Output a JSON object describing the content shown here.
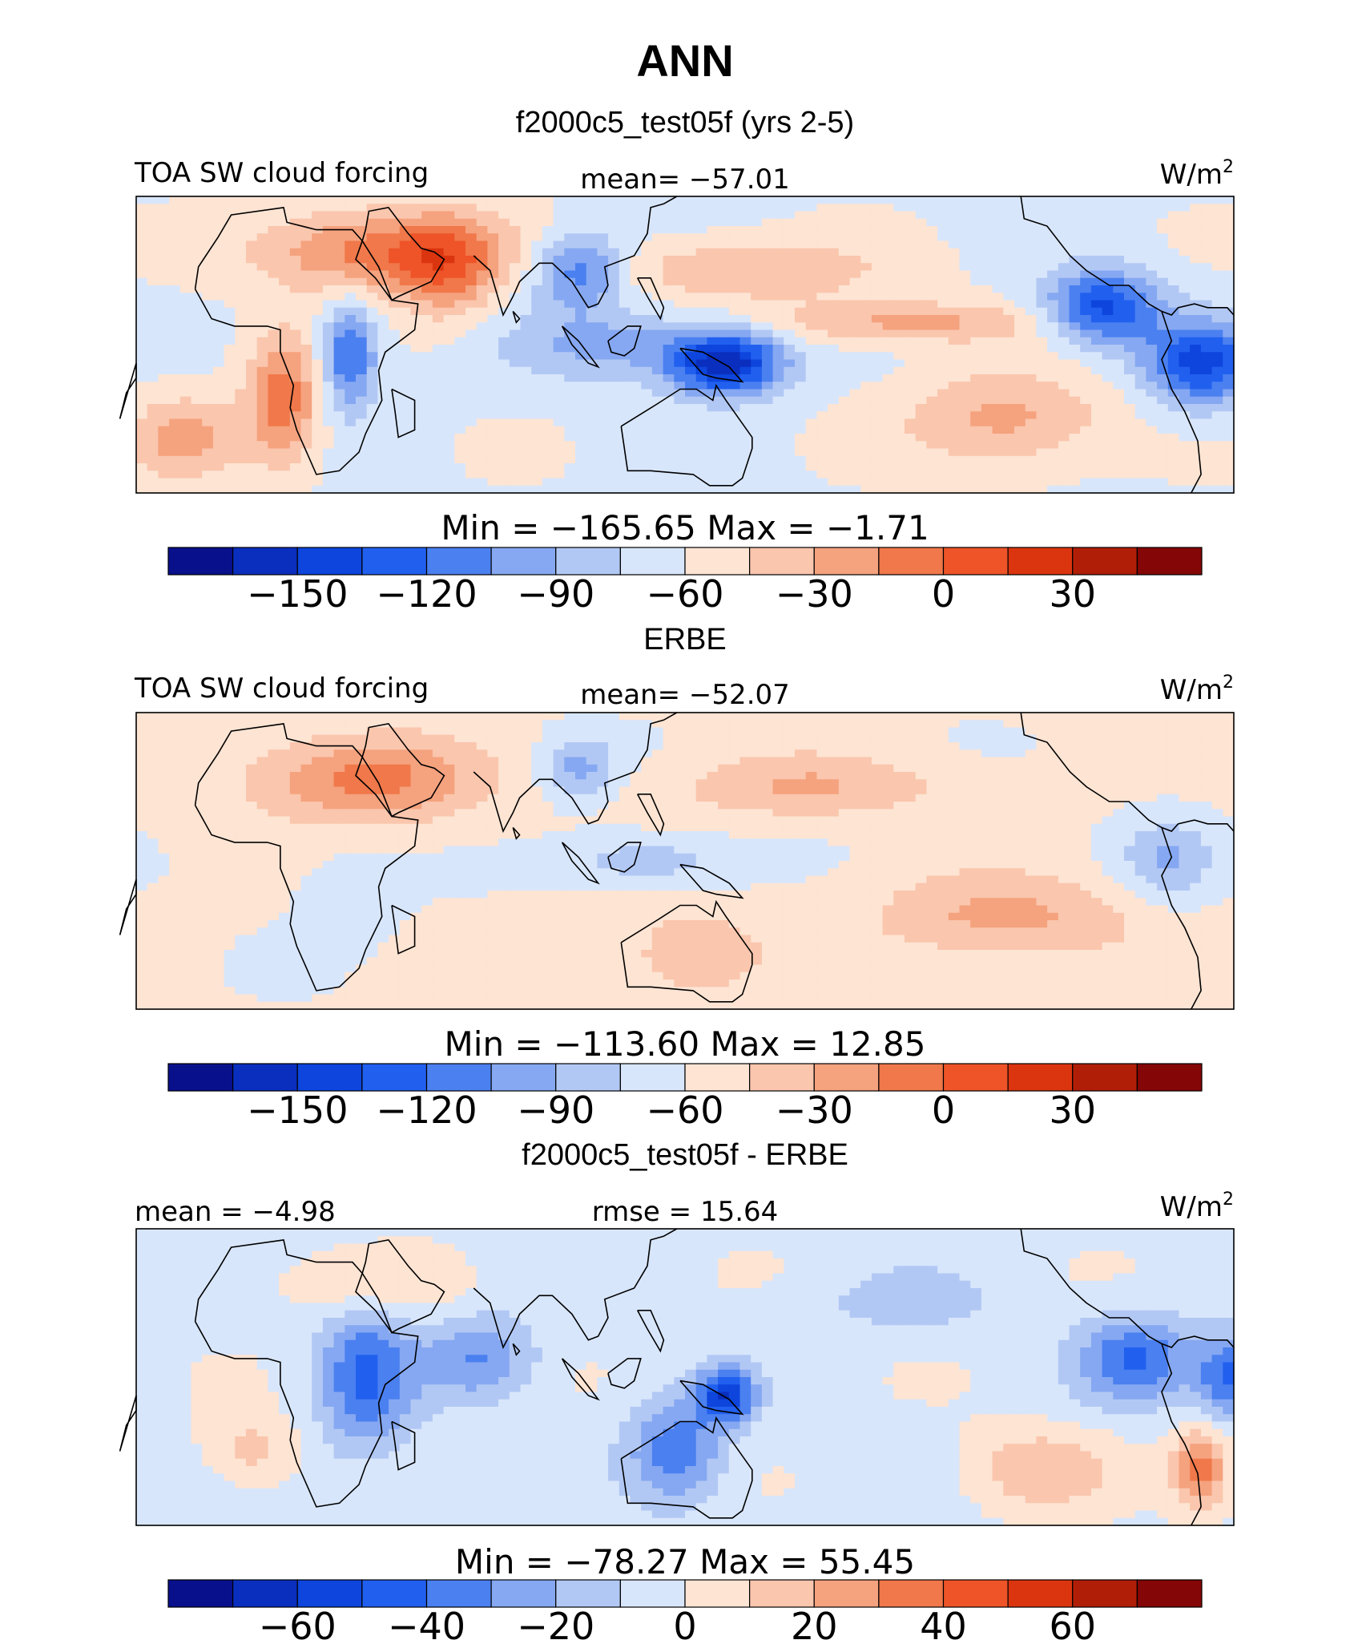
{
  "page": {
    "title": "ANN"
  },
  "palette": [
    "#08108c",
    "#0a2fbf",
    "#0d45dd",
    "#2160ef",
    "#4b80f0",
    "#86a8f2",
    "#b2c8f4",
    "#d8e6fb",
    "#fde4d3",
    "#fac6ad",
    "#f5a27e",
    "#f0784a",
    "#ee5428",
    "#db3510",
    "#b01e08",
    "#850606"
  ],
  "chart_data": [
    {
      "type": "heatmap",
      "panel_title": "f2000c5_test05f (yrs 2-5)",
      "variable": "TOA SW cloud forcing",
      "stat_text": "mean= −57.01",
      "units_label": "W/m",
      "units_sup": "2",
      "minmax_text": "Min  =  −165.65  Max  =   −1.71",
      "mean": -57.01,
      "min": -165.65,
      "max": -1.71,
      "colorbar_levels": [
        -165,
        -150,
        -135,
        -120,
        -105,
        -90,
        -75,
        -60,
        -45,
        -30,
        -15,
        0,
        15,
        30,
        45
      ],
      "colorbar_ticks": [
        -150,
        -120,
        -90,
        -60,
        -30,
        0,
        30
      ],
      "colorbar_tick_labels": [
        "−150",
        "−120",
        "−90",
        "−60",
        "−30",
        "0",
        "30"
      ],
      "features": [
        {
          "lon": 40,
          "lat": 25,
          "sx": 26,
          "sy": 8,
          "v": -4
        },
        {
          "lon": 60,
          "lat": 20,
          "sx": 10,
          "sy": 10,
          "v": -25
        },
        {
          "lon": 10,
          "lat": -15,
          "sx": 8,
          "sy": 12,
          "v": -6
        },
        {
          "lon": 100,
          "lat": 20,
          "sx": 10,
          "sy": 7,
          "v": -120
        },
        {
          "lon": 150,
          "lat": 20,
          "sx": 30,
          "sy": 6,
          "v": -30
        },
        {
          "lon": 230,
          "lat": -20,
          "sx": 22,
          "sy": 9,
          "v": -25
        },
        {
          "lon": 200,
          "lat": 6,
          "sx": 30,
          "sy": 4,
          "v": -25
        },
        {
          "lon": 260,
          "lat": 10,
          "sx": 12,
          "sy": 7,
          "v": -140
        },
        {
          "lon": 290,
          "lat": -5,
          "sx": 12,
          "sy": 8,
          "v": -140
        },
        {
          "lon": 30,
          "lat": -3,
          "sx": 6,
          "sy": 10,
          "v": -125
        },
        {
          "lon": 145,
          "lat": -5,
          "sx": 12,
          "sy": 6,
          "v": -160
        },
        {
          "lon": 110,
          "lat": 0,
          "sx": 22,
          "sy": 7,
          "v": -95
        },
        {
          "lon": -20,
          "lat": -25,
          "sx": 12,
          "sy": 8,
          "v": -25
        }
      ],
      "baseline": -62
    },
    {
      "type": "heatmap",
      "panel_title": "ERBE",
      "variable": "TOA SW cloud forcing",
      "stat_text": "mean= −52.07",
      "units_label": "W/m",
      "units_sup": "2",
      "minmax_text": "Min  =  −113.60  Max  =   12.85",
      "mean": -52.07,
      "min": -113.6,
      "max": 12.85,
      "colorbar_levels": [
        -165,
        -150,
        -135,
        -120,
        -105,
        -90,
        -75,
        -60,
        -45,
        -30,
        -15,
        0,
        15,
        30,
        45
      ],
      "colorbar_ticks": [
        -150,
        -120,
        -90,
        -60,
        -30,
        0,
        30
      ],
      "colorbar_tick_labels": [
        "−150",
        "−120",
        "−90",
        "−60",
        "−30",
        "0",
        "30"
      ],
      "features": [
        {
          "lon": 35,
          "lat": 22,
          "sx": 24,
          "sy": 8,
          "v": -8
        },
        {
          "lon": 170,
          "lat": 20,
          "sx": 30,
          "sy": 6,
          "v": -30
        },
        {
          "lon": 230,
          "lat": -15,
          "sx": 28,
          "sy": 8,
          "v": -25
        },
        {
          "lon": 135,
          "lat": -25,
          "sx": 14,
          "sy": 8,
          "v": -30
        },
        {
          "lon": 100,
          "lat": 25,
          "sx": 8,
          "sy": 6,
          "v": -95
        },
        {
          "lon": 120,
          "lat": 0,
          "sx": 18,
          "sy": 5,
          "v": -85
        },
        {
          "lon": 280,
          "lat": 0,
          "sx": 10,
          "sy": 8,
          "v": -90
        },
        {
          "lon": 30,
          "lat": -10,
          "sx": 10,
          "sy": 8,
          "v": -75
        }
      ],
      "baseline": -58
    },
    {
      "type": "heatmap",
      "panel_title": "f2000c5_test05f - ERBE",
      "stat_text": "mean =   −4.98",
      "stat2_text": "rmse  =   15.64",
      "units_label": "W/m",
      "units_sup": "2",
      "minmax_text": "Min  =  −78.27  Max  =   55.45",
      "mean": -4.98,
      "rmse": 15.64,
      "min": -78.27,
      "max": 55.45,
      "colorbar_levels": [
        -70,
        -60,
        -50,
        -40,
        -30,
        -20,
        -10,
        0,
        10,
        20,
        30,
        40,
        50,
        60,
        70
      ],
      "colorbar_ticks": [
        -60,
        -40,
        -20,
        0,
        20,
        40,
        60
      ],
      "colorbar_tick_labels": [
        "−60",
        "−40",
        "−20",
        "0",
        "20",
        "40",
        "60"
      ],
      "features": [
        {
          "lon": 35,
          "lat": 0,
          "sx": 10,
          "sy": 14,
          "v": -40
        },
        {
          "lon": 70,
          "lat": 5,
          "sx": 12,
          "sy": 8,
          "v": -30
        },
        {
          "lon": 130,
          "lat": -20,
          "sx": 10,
          "sy": 10,
          "v": -38
        },
        {
          "lon": 145,
          "lat": -5,
          "sx": 6,
          "sy": 5,
          "v": -55
        },
        {
          "lon": 270,
          "lat": 5,
          "sx": 12,
          "sy": 8,
          "v": -40
        },
        {
          "lon": 300,
          "lat": 0,
          "sx": 8,
          "sy": 8,
          "v": -45
        },
        {
          "lon": 240,
          "lat": -25,
          "sx": 16,
          "sy": 8,
          "v": 18
        },
        {
          "lon": 0,
          "lat": -20,
          "sx": 10,
          "sy": 7,
          "v": 15
        },
        {
          "lon": 35,
          "lat": 25,
          "sx": 18,
          "sy": 6,
          "v": 12
        },
        {
          "lon": 200,
          "lat": 20,
          "sx": 20,
          "sy": 6,
          "v": -14
        },
        {
          "lon": 290,
          "lat": -25,
          "sx": 6,
          "sy": 8,
          "v": 35
        }
      ],
      "baseline": -3
    }
  ]
}
